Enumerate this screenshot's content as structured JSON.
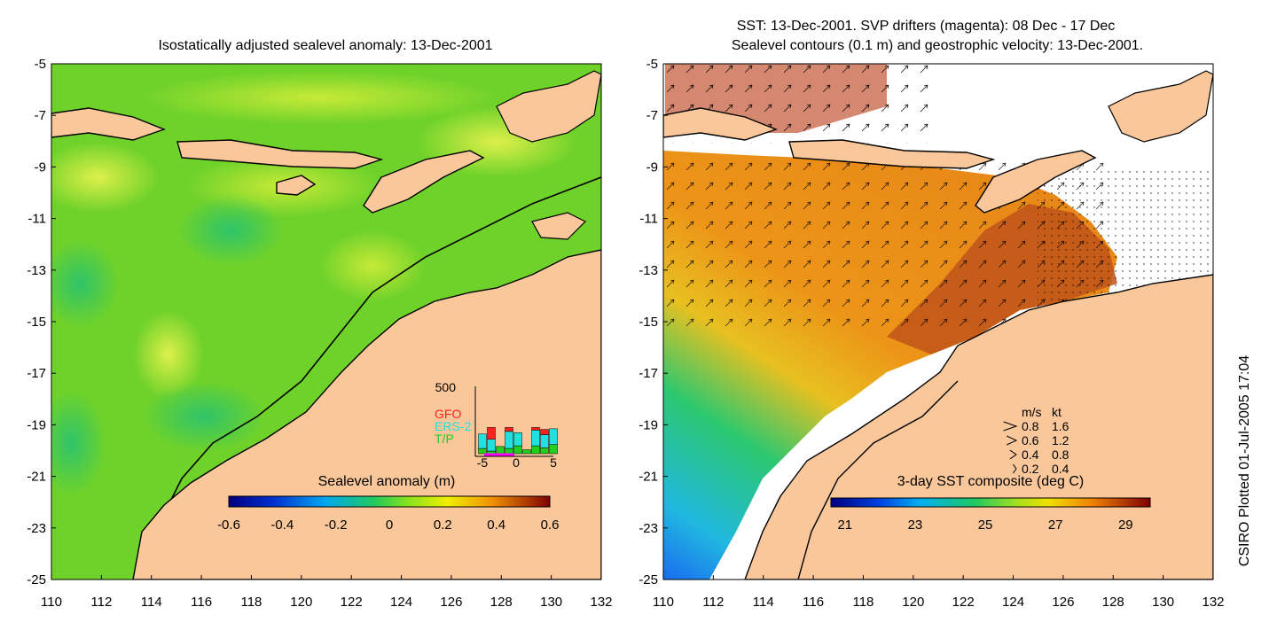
{
  "left_panel": {
    "title": "Isostatically adjusted sealevel anomaly: 13-Dec-2001",
    "colorbar": {
      "label": "Sealevel anomaly (m)",
      "ticks": [
        "-0.6",
        "-0.4",
        "-0.2",
        "0",
        "0.2",
        "0.4",
        "0.6"
      ],
      "range": [
        -0.6,
        0.6
      ]
    },
    "inset": {
      "y_top_label": "500",
      "x_ticks": [
        "-5",
        "0",
        "5"
      ],
      "legend": [
        {
          "label": "GFO",
          "color": "#ff2020"
        },
        {
          "label": "ERS-2",
          "color": "#20e0e0"
        },
        {
          "label": "T/P",
          "color": "#20d020"
        }
      ],
      "x_days": [
        -4,
        -3,
        -2,
        -1,
        0,
        1,
        2,
        3,
        4
      ],
      "tp_counts": [
        40,
        20,
        55,
        40,
        60,
        30,
        60,
        45,
        70
      ],
      "ers_counts": [
        110,
        90,
        0,
        130,
        100,
        0,
        120,
        100,
        120
      ],
      "gfo_counts": [
        0,
        90,
        0,
        30,
        0,
        0,
        20,
        40,
        0
      ]
    }
  },
  "right_panel": {
    "title_line1": "SST: 13-Dec-2001. SVP drifters (magenta): 08 Dec - 17 Dec",
    "title_line2": "Sealevel contours (0.1 m) and geostrophic velocity: 13-Dec-2001.",
    "colorbar": {
      "label": "3-day SST composite (deg C)",
      "ticks": [
        "21",
        "23",
        "25",
        "27",
        "29"
      ],
      "range": [
        20.6,
        29.7
      ]
    },
    "velocity_key": {
      "header_ms": "m/s",
      "header_kt": "kt",
      "rows": [
        {
          "ms": "0.8",
          "kt": "1.6"
        },
        {
          "ms": "0.6",
          "kt": "1.2"
        },
        {
          "ms": "0.4",
          "kt": "0.8"
        },
        {
          "ms": "0.2",
          "kt": "0.4"
        }
      ]
    }
  },
  "axes": {
    "y_labels": [
      "-5",
      "-7",
      "-9",
      "-11",
      "-13",
      "-15",
      "-17",
      "-19",
      "-21",
      "-23",
      "-25"
    ],
    "x_labels": [
      "110",
      "112",
      "114",
      "116",
      "118",
      "120",
      "122",
      "124",
      "126",
      "128",
      "130",
      "132"
    ],
    "lat_range": [
      -25,
      -5
    ],
    "lon_range": [
      110,
      132
    ]
  },
  "credit": "CSIRO Plotted 01-Jul-2005 17:04",
  "colors": {
    "land": "#f9c79a",
    "sea_anomaly_base": "#6fd22a",
    "sst_warm": "#e98a1a",
    "sst_hot": "#b8380f"
  }
}
